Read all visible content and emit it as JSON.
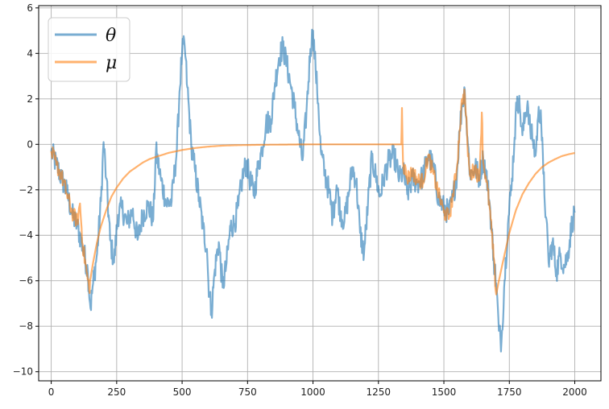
{
  "chart_data": {
    "type": "line",
    "xlim": [
      -48,
      2100
    ],
    "ylim": [
      -10.4,
      6.1
    ],
    "x_ticks": [
      0,
      250,
      500,
      750,
      1000,
      1250,
      1500,
      1750,
      2000
    ],
    "y_ticks": [
      6,
      4,
      2,
      0,
      -2,
      -4,
      -6,
      -8,
      -10
    ],
    "x_tick_labels": [
      "0",
      "250",
      "500",
      "750",
      "1000",
      "1250",
      "1500",
      "1750",
      "2000"
    ],
    "y_tick_labels": [
      "6",
      "4",
      "2",
      "0",
      "−2",
      "−4",
      "−6",
      "−8",
      "−10"
    ],
    "grid": true,
    "legend_position": "top-left",
    "series": [
      {
        "name": "θ",
        "color": "#1f77b4",
        "opacity": 0.6,
        "points": [
          [
            0,
            -0.3
          ],
          [
            20,
            -0.9
          ],
          [
            40,
            -1.5
          ],
          [
            60,
            -2.1
          ],
          [
            80,
            -3.1
          ],
          [
            100,
            -3.6
          ],
          [
            120,
            -4.5
          ],
          [
            140,
            -5.6
          ],
          [
            150,
            -7.2
          ],
          [
            160,
            -6.1
          ],
          [
            175,
            -4.8
          ],
          [
            190,
            -2.5
          ],
          [
            200,
            0.1
          ],
          [
            210,
            -1.5
          ],
          [
            225,
            -4.2
          ],
          [
            240,
            -5.2
          ],
          [
            255,
            -3.1
          ],
          [
            270,
            -2.8
          ],
          [
            290,
            -3.5
          ],
          [
            310,
            -2.9
          ],
          [
            330,
            -4.2
          ],
          [
            350,
            -3.1
          ],
          [
            370,
            -2.7
          ],
          [
            390,
            -3.3
          ],
          [
            400,
            -0.3
          ],
          [
            420,
            -1.6
          ],
          [
            440,
            -2.6
          ],
          [
            460,
            -2.5
          ],
          [
            480,
            -0.2
          ],
          [
            490,
            2.3
          ],
          [
            500,
            4.1
          ],
          [
            510,
            4.3
          ],
          [
            520,
            2.5
          ],
          [
            535,
            0.0
          ],
          [
            550,
            -1.2
          ],
          [
            565,
            -2.4
          ],
          [
            580,
            -3.7
          ],
          [
            595,
            -4.6
          ],
          [
            600,
            -6.0
          ],
          [
            612,
            -7.4
          ],
          [
            625,
            -5.5
          ],
          [
            640,
            -4.3
          ],
          [
            655,
            -6.3
          ],
          [
            670,
            -5.2
          ],
          [
            685,
            -3.6
          ],
          [
            700,
            -3.5
          ],
          [
            715,
            -2.7
          ],
          [
            730,
            -1.5
          ],
          [
            745,
            -0.8
          ],
          [
            760,
            -1.6
          ],
          [
            775,
            -2.2
          ],
          [
            790,
            -1.0
          ],
          [
            805,
            -0.2
          ],
          [
            820,
            0.9
          ],
          [
            840,
            1.1
          ],
          [
            855,
            2.7
          ],
          [
            870,
            3.8
          ],
          [
            885,
            4.3
          ],
          [
            900,
            3.5
          ],
          [
            915,
            2.6
          ],
          [
            930,
            1.6
          ],
          [
            945,
            0.4
          ],
          [
            960,
            -0.7
          ],
          [
            975,
            1.4
          ],
          [
            990,
            4.2
          ],
          [
            1000,
            5.0
          ],
          [
            1010,
            3.3
          ],
          [
            1020,
            1.8
          ],
          [
            1030,
            -0.3
          ],
          [
            1045,
            -1.3
          ],
          [
            1060,
            -2.0
          ],
          [
            1075,
            -3.2
          ],
          [
            1090,
            -1.8
          ],
          [
            1105,
            -3.0
          ],
          [
            1120,
            -3.4
          ],
          [
            1135,
            -2.3
          ],
          [
            1150,
            -1.0
          ],
          [
            1165,
            -1.6
          ],
          [
            1180,
            -3.9
          ],
          [
            1195,
            -4.8
          ],
          [
            1210,
            -2.6
          ],
          [
            1225,
            -0.6
          ],
          [
            1240,
            -1.4
          ],
          [
            1255,
            -2.3
          ],
          [
            1270,
            -1.5
          ],
          [
            1290,
            -0.7
          ],
          [
            1310,
            -0.5
          ],
          [
            1330,
            -1.5
          ],
          [
            1345,
            -1.2
          ],
          [
            1360,
            -2.2
          ],
          [
            1380,
            -1.5
          ],
          [
            1400,
            -1.7
          ],
          [
            1420,
            -1.4
          ],
          [
            1440,
            -0.5
          ],
          [
            1460,
            -1.0
          ],
          [
            1480,
            -2.4
          ],
          [
            1500,
            -2.8
          ],
          [
            1520,
            -3.0
          ],
          [
            1535,
            -2.3
          ],
          [
            1550,
            -1.3
          ],
          [
            1560,
            0.6
          ],
          [
            1570,
            1.8
          ],
          [
            1580,
            2.4
          ],
          [
            1590,
            0.3
          ],
          [
            1600,
            -1.3
          ],
          [
            1610,
            -1.2
          ],
          [
            1620,
            -1.0
          ],
          [
            1635,
            -1.5
          ],
          [
            1650,
            -0.6
          ],
          [
            1660,
            -1.1
          ],
          [
            1675,
            -2.6
          ],
          [
            1690,
            -5.0
          ],
          [
            1700,
            -6.1
          ],
          [
            1710,
            -8.2
          ],
          [
            1720,
            -8.7
          ],
          [
            1730,
            -6.3
          ],
          [
            1745,
            -3.5
          ],
          [
            1760,
            -1.5
          ],
          [
            1770,
            0.3
          ],
          [
            1780,
            2.1
          ],
          [
            1790,
            1.6
          ],
          [
            1800,
            0.4
          ],
          [
            1810,
            1.2
          ],
          [
            1820,
            1.9
          ],
          [
            1830,
            0.6
          ],
          [
            1840,
            0.2
          ],
          [
            1850,
            -0.5
          ],
          [
            1860,
            1.2
          ],
          [
            1870,
            1.5
          ],
          [
            1880,
            -1.3
          ],
          [
            1890,
            -3.2
          ],
          [
            1900,
            -5.2
          ],
          [
            1915,
            -4.3
          ],
          [
            1930,
            -5.6
          ],
          [
            1945,
            -4.8
          ],
          [
            1960,
            -5.4
          ],
          [
            1975,
            -4.7
          ],
          [
            1990,
            -3.4
          ],
          [
            2000,
            -3.0
          ]
        ]
      },
      {
        "name": "μ",
        "color": "#ff7f0e",
        "opacity": 0.6,
        "points": [
          [
            0,
            -0.3
          ],
          [
            20,
            -0.9
          ],
          [
            40,
            -1.4
          ],
          [
            60,
            -2.2
          ],
          [
            80,
            -3.0
          ],
          [
            100,
            -3.4
          ],
          [
            110,
            -2.6
          ],
          [
            120,
            -4.4
          ],
          [
            135,
            -5.6
          ],
          [
            145,
            -6.4
          ],
          [
            150,
            -5.9
          ],
          [
            160,
            -5.2
          ],
          [
            175,
            -4.3
          ],
          [
            190,
            -3.6
          ],
          [
            210,
            -2.9
          ],
          [
            230,
            -2.3
          ],
          [
            250,
            -1.9
          ],
          [
            275,
            -1.5
          ],
          [
            300,
            -1.2
          ],
          [
            325,
            -1.0
          ],
          [
            350,
            -0.8
          ],
          [
            375,
            -0.65
          ],
          [
            400,
            -0.55
          ],
          [
            450,
            -0.37
          ],
          [
            500,
            -0.25
          ],
          [
            550,
            -0.16
          ],
          [
            600,
            -0.1
          ],
          [
            650,
            -0.06
          ],
          [
            700,
            -0.04
          ],
          [
            800,
            -0.02
          ],
          [
            900,
            -0.01
          ],
          [
            1000,
            0.0
          ],
          [
            1100,
            0.0
          ],
          [
            1200,
            0.0
          ],
          [
            1337,
            0.0
          ],
          [
            1340,
            1.6
          ],
          [
            1344,
            -0.8
          ],
          [
            1360,
            -1.5
          ],
          [
            1380,
            -1.2
          ],
          [
            1400,
            -1.6
          ],
          [
            1420,
            -1.6
          ],
          [
            1440,
            -0.5
          ],
          [
            1460,
            -1.3
          ],
          [
            1480,
            -2.2
          ],
          [
            1500,
            -3.0
          ],
          [
            1520,
            -3.2
          ],
          [
            1535,
            -2.2
          ],
          [
            1550,
            -1.0
          ],
          [
            1560,
            0.6
          ],
          [
            1570,
            2.0
          ],
          [
            1580,
            2.2
          ],
          [
            1590,
            0.0
          ],
          [
            1600,
            -1.4
          ],
          [
            1620,
            -1.0
          ],
          [
            1635,
            -1.6
          ],
          [
            1645,
            1.4
          ],
          [
            1650,
            -0.8
          ],
          [
            1660,
            -1.4
          ],
          [
            1675,
            -2.8
          ],
          [
            1690,
            -5.0
          ],
          [
            1700,
            -6.6
          ],
          [
            1710,
            -6.0
          ],
          [
            1725,
            -5.2
          ],
          [
            1750,
            -3.9
          ],
          [
            1775,
            -2.9
          ],
          [
            1800,
            -2.2
          ],
          [
            1825,
            -1.7
          ],
          [
            1850,
            -1.3
          ],
          [
            1875,
            -1.0
          ],
          [
            1900,
            -0.8
          ],
          [
            1925,
            -0.65
          ],
          [
            1950,
            -0.52
          ],
          [
            1975,
            -0.44
          ],
          [
            2000,
            -0.38
          ]
        ]
      }
    ]
  }
}
